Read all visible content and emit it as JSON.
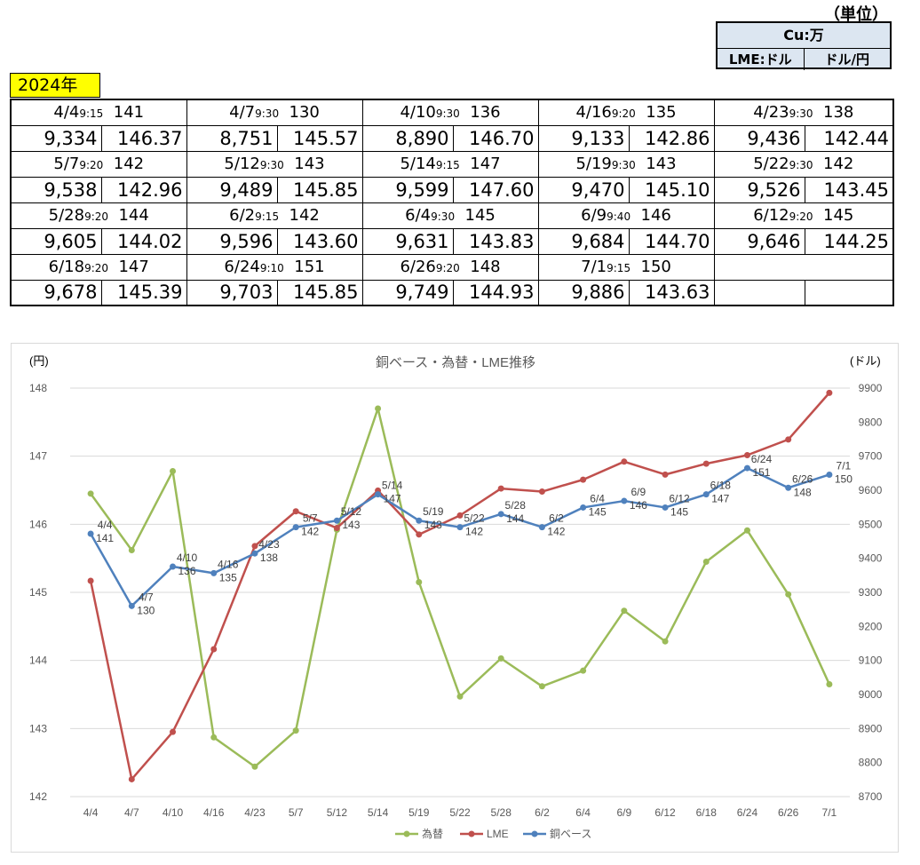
{
  "unit_header": {
    "title": "（単位）",
    "cu_label": "Cu:万",
    "lme_label": "LME:ドル",
    "fx_label": "ドル/円"
  },
  "year_label": "2024年",
  "table": {
    "rows": [
      [
        {
          "date": "4/4",
          "time": "9:15",
          "cu": "141",
          "lme": "9,334",
          "fx": "146.37"
        },
        {
          "date": "4/7",
          "time": "9:30",
          "cu": "130",
          "lme": "8,751",
          "fx": "145.57"
        },
        {
          "date": "4/10",
          "time": "9:30",
          "cu": "136",
          "lme": "8,890",
          "fx": "146.70"
        },
        {
          "date": "4/16",
          "time": "9:20",
          "cu": "135",
          "lme": "9,133",
          "fx": "142.86"
        },
        {
          "date": "4/23",
          "time": "9:30",
          "cu": "138",
          "lme": "9,436",
          "fx": "142.44"
        }
      ],
      [
        {
          "date": "5/7",
          "time": "9:20",
          "cu": "142",
          "lme": "9,538",
          "fx": "142.96"
        },
        {
          "date": "5/12",
          "time": "9:30",
          "cu": "143",
          "lme": "9,489",
          "fx": "145.85"
        },
        {
          "date": "5/14",
          "time": "9:15",
          "cu": "147",
          "lme": "9,599",
          "fx": "147.60"
        },
        {
          "date": "5/19",
          "time": "9:30",
          "cu": "143",
          "lme": "9,470",
          "fx": "145.10"
        },
        {
          "date": "5/22",
          "time": "9:30",
          "cu": "142",
          "lme": "9,526",
          "fx": "143.45"
        }
      ],
      [
        {
          "date": "5/28",
          "time": "9:20",
          "cu": "144",
          "lme": "9,605",
          "fx": "144.02"
        },
        {
          "date": "6/2",
          "time": "9:15",
          "cu": "142",
          "lme": "9,596",
          "fx": "143.60"
        },
        {
          "date": "6/4",
          "time": "9:30",
          "cu": "145",
          "lme": "9,631",
          "fx": "143.83"
        },
        {
          "date": "6/9",
          "time": "9:40",
          "cu": "146",
          "lme": "9,684",
          "fx": "144.70"
        },
        {
          "date": "6/12",
          "time": "9:20",
          "cu": "145",
          "lme": "9,646",
          "fx": "144.25"
        }
      ],
      [
        {
          "date": "6/18",
          "time": "9:20",
          "cu": "147",
          "lme": "9,678",
          "fx": "145.39"
        },
        {
          "date": "6/24",
          "time": "9:10",
          "cu": "151",
          "lme": "9,703",
          "fx": "145.85"
        },
        {
          "date": "6/26",
          "time": "9:20",
          "cu": "148",
          "lme": "9,749",
          "fx": "144.93"
        },
        {
          "date": "7/1",
          "time": "9:15",
          "cu": "150",
          "lme": "9,886",
          "fx": "143.63"
        },
        null
      ]
    ]
  },
  "colors": {
    "fx": "#9bbb59",
    "lme": "#c0504d",
    "cu": "#4f81bd",
    "grid": "#d9d9d9",
    "axis_text": "#595959"
  },
  "chart_data": {
    "type": "line",
    "title": "銅ベース・為替・LME推移",
    "ylabel_left": "(円)",
    "ylabel_right": "(ドル)",
    "ylim_left": [
      142,
      148
    ],
    "ylim_right": [
      8700,
      9900
    ],
    "yticks_left": [
      "142",
      "143",
      "144",
      "145",
      "146",
      "147",
      "148"
    ],
    "yticks_right": [
      "8700",
      "8800",
      "8900",
      "9000",
      "9100",
      "9200",
      "9300",
      "9400",
      "9500",
      "9600",
      "9700",
      "9800",
      "9900"
    ],
    "categories": [
      "4/4",
      "4/7",
      "4/10",
      "4/16",
      "4/23",
      "5/7",
      "5/12",
      "5/14",
      "5/19",
      "5/22",
      "5/28",
      "6/2",
      "6/4",
      "6/9",
      "6/12",
      "6/18",
      "6/24",
      "6/26",
      "7/1"
    ],
    "legend_position": "bottom",
    "grid": true,
    "series": [
      {
        "name": "為替",
        "axis": "left",
        "values": [
          146.45,
          145.62,
          146.78,
          142.87,
          142.44,
          142.97,
          145.92,
          147.7,
          145.15,
          143.47,
          144.03,
          143.62,
          143.85,
          144.73,
          144.28,
          145.45,
          145.91,
          144.97,
          143.65
        ]
      },
      {
        "name": "LME",
        "axis": "right",
        "values": [
          9334,
          8751,
          8890,
          9133,
          9436,
          9538,
          9489,
          9599,
          9470,
          9526,
          9605,
          9596,
          9631,
          9684,
          9646,
          9678,
          9703,
          9749,
          9886
        ]
      },
      {
        "name": "銅ベース",
        "axis": "right_cu",
        "values": [
          141,
          130,
          136,
          135,
          138,
          142,
          143,
          147,
          143,
          142,
          144,
          142,
          145,
          146,
          145,
          147,
          151,
          148,
          150
        ],
        "labels": [
          "4/4\n141",
          "4/7\n130",
          "4/10\n136",
          "4/16\n135",
          "4/23\n138",
          "5/7\n142",
          "5/12\n143",
          "5/14\n147",
          "5/19\n143",
          "5/22\n142",
          "5/28\n144",
          "6/2\n142",
          "6/4\n145",
          "6/9\n146",
          "6/12\n145",
          "6/18\n147",
          "6/24\n151",
          "6/26\n148",
          "7/1\n150"
        ]
      }
    ]
  }
}
